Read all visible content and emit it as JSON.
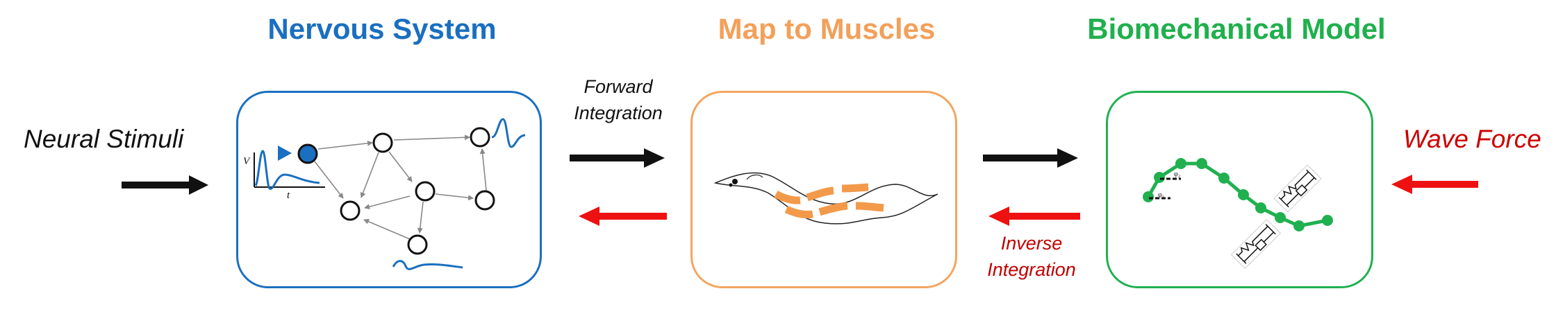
{
  "titles": {
    "nervous": "Nervous System",
    "map": "Map to Muscles",
    "bio": "Biomechanical Model"
  },
  "labels": {
    "neural_stimuli": "Neural Stimuli",
    "forward": [
      "Forward",
      "Integration"
    ],
    "inverse": [
      "Inverse",
      "Integration"
    ],
    "wave_force": "Wave Force",
    "axis_v": "V",
    "axis_t": "t",
    "phi1": "φ₁",
    "phi2": "φ₂"
  },
  "colors": {
    "nervous": "#1a6fc0",
    "map": "#f4a460",
    "bio": "#20b050",
    "arrow_forward": "#111111",
    "arrow_inverse": "#ee1111",
    "text_red": "#cc0000",
    "muscle": "#f29a4a"
  }
}
